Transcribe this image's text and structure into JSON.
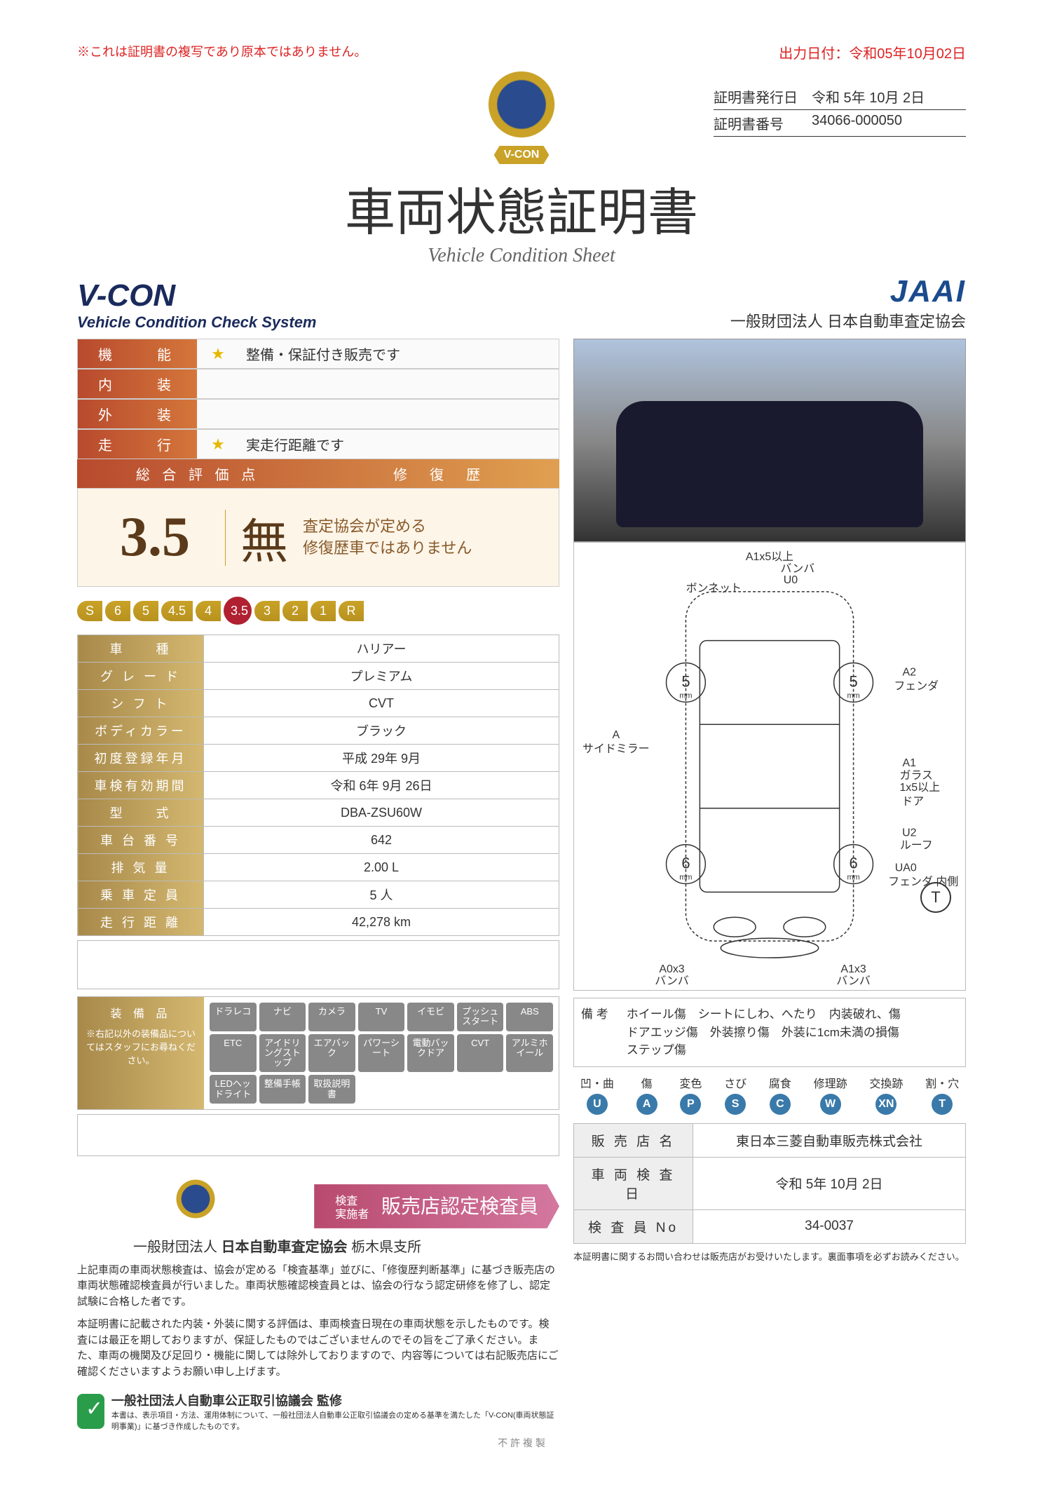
{
  "header": {
    "disclaimer": "※これは証明書の複写であり原本ではありません。",
    "output_date": "出力日付：令和05年10月02日",
    "badge_label": "V-CON",
    "cert_issue_label": "証明書発行日",
    "cert_issue_value": "令和 5年 10月 2日",
    "cert_no_label": "証明書番号",
    "cert_no_value": "34066-000050",
    "main_title": "車両状態証明書",
    "subtitle": "Vehicle Condition Sheet",
    "vcon_title": "V-CON",
    "vcon_sub": "Vehicle Condition Check System",
    "jaai": "JAAI",
    "jaai_sub": "一般財団法人 日本自動車査定協会"
  },
  "ratings": {
    "rows": [
      {
        "label": "機　　能",
        "star": "★",
        "text": "整備・保証付き販売です"
      },
      {
        "label": "内　　装",
        "star": "",
        "text": ""
      },
      {
        "label": "外　　装",
        "star": "",
        "text": ""
      },
      {
        "label": "走　　行",
        "star": "★",
        "text": "実走行距離です"
      }
    ],
    "score_header_left": "総 合 評 価 点",
    "score_header_right": "修　復　歴",
    "score_value": "3.5",
    "repair_mark": "無",
    "repair_desc1": "査定協会が定める",
    "repair_desc2": "修復歴車ではありません",
    "scale": [
      "S",
      "6",
      "5",
      "4.5",
      "4",
      "3.5",
      "3",
      "2",
      "1",
      "R"
    ],
    "scale_selected": "3.5"
  },
  "specs": [
    {
      "label": "車　　種",
      "value": "ハリアー"
    },
    {
      "label": "グ レ ー ド",
      "value": "プレミアム"
    },
    {
      "label": "シ フ ト",
      "value": "CVT"
    },
    {
      "label": "ボディカラー",
      "value": "ブラック"
    },
    {
      "label": "初度登録年月",
      "value": "平成 29年 9月"
    },
    {
      "label": "車検有効期間",
      "value": "令和 6年 9月 26日"
    },
    {
      "label": "型　　式",
      "value": "DBA-ZSU60W"
    },
    {
      "label": "車 台 番 号",
      "value": "642"
    },
    {
      "label": "排 気 量",
      "value": "2.00 L"
    },
    {
      "label": "乗 車 定 員",
      "value": "5 人"
    },
    {
      "label": "走 行 距 離",
      "value": "42,278 km"
    }
  ],
  "equipment": {
    "label": "装 備 品",
    "note": "※右記以外の装備品についてはスタッフにお尋ねください。",
    "chips": [
      "ドラレコ",
      "ナビ",
      "カメラ",
      "TV",
      "イモビ",
      "プッシュスタート",
      "ABS",
      "ETC",
      "アイドリングストップ",
      "エアバック",
      "パワーシート",
      "電動バックドア",
      "CVT",
      "アルミホイール",
      "LEDヘッドライト",
      "整備手帳",
      "取扱説明書",
      "",
      "",
      "",
      ""
    ]
  },
  "diagram": {
    "annotations": {
      "top1": "A1x5以上",
      "top2": "バンバ",
      "top3": "U0",
      "top4": "ボンネット",
      "left1": "A",
      "left2": "サイドミラー",
      "right1": "A2",
      "right2": "フェンダ",
      "right3": "A1",
      "right4": "ガラス",
      "right4b": "1x5以上",
      "right5": "ドア",
      "right6": "U2",
      "right7": "ルーフ",
      "right8": "UA0",
      "right9": "フェンダ 内側",
      "bottom_left": "A0x3",
      "bottom_left2": "バンバ",
      "bottom_right": "A1x3",
      "bottom_right2": "バンバ",
      "wheel_tl": "5",
      "wheel_tr": "5",
      "wheel_bl": "6",
      "wheel_br": "6",
      "mm": "mm"
    },
    "t_mark": "T"
  },
  "remarks": {
    "label": "備 考",
    "text": "ホイール傷　シートにしわ、へたり　内装破れ、傷\nドアエッジ傷　外装擦り傷　外装に1cm未満の損傷\nステップ傷"
  },
  "inspector": {
    "banner_small": "検査\n実施者",
    "banner_text": "販売店認定検査員",
    "assoc_prefix": "一般財団法人",
    "assoc_name": "日本自動車査定協会",
    "assoc_branch": "栃木県支所",
    "fine1": "上記車両の車両状態検査は、協会が定める「検査基準」並びに、「修復歴判断基準」に基づき販売店の車両状態確認検査員が行いました。車両状態確認検査員とは、協会の行なう認定研修を修了し、認定試験に合格した者です。",
    "fine2": "本証明書に記載された内装・外装に関する評価は、車両検査日現在の車両状態を示したものです。検査には最正を期しておりますが、保証したものではございませんのでその旨をご了承ください。また、車両の機関及び足回り・機能に関しては除外しておりますので、内容等については右記販売店にご確認くださいますようお願い申し上げます。"
  },
  "legend": [
    {
      "label": "凹・曲",
      "code": "U"
    },
    {
      "label": "傷",
      "code": "A"
    },
    {
      "label": "変色",
      "code": "P"
    },
    {
      "label": "さび",
      "code": "S"
    },
    {
      "label": "腐食",
      "code": "C"
    },
    {
      "label": "修理跡",
      "code": "W"
    },
    {
      "label": "交換跡",
      "code": "XN"
    },
    {
      "label": "割・穴",
      "code": "T"
    }
  ],
  "dealer": {
    "rows": [
      {
        "label": "販 売 店 名",
        "value": "東日本三菱自動車販売株式会社"
      },
      {
        "label": "車 両 検 査 日",
        "value": "令和 5年 10月 2日"
      },
      {
        "label": "検 査 員 No",
        "value": "34-0037"
      }
    ],
    "tiny_note": "本証明書に関するお問い合わせは販売店がお受けいたします。裏面事項を必ずお読みください。"
  },
  "footer": {
    "title": "一般社団法人自動車公正取引協議会 監修",
    "sub": "本書は、表示項目・方法、運用体制について、一般社団法人自動車公正取引協議会の定める基準を満たした「V-CON(車両状態証明事業)」に基づき作成したものです。",
    "no_copy": "不 許 複 製"
  }
}
